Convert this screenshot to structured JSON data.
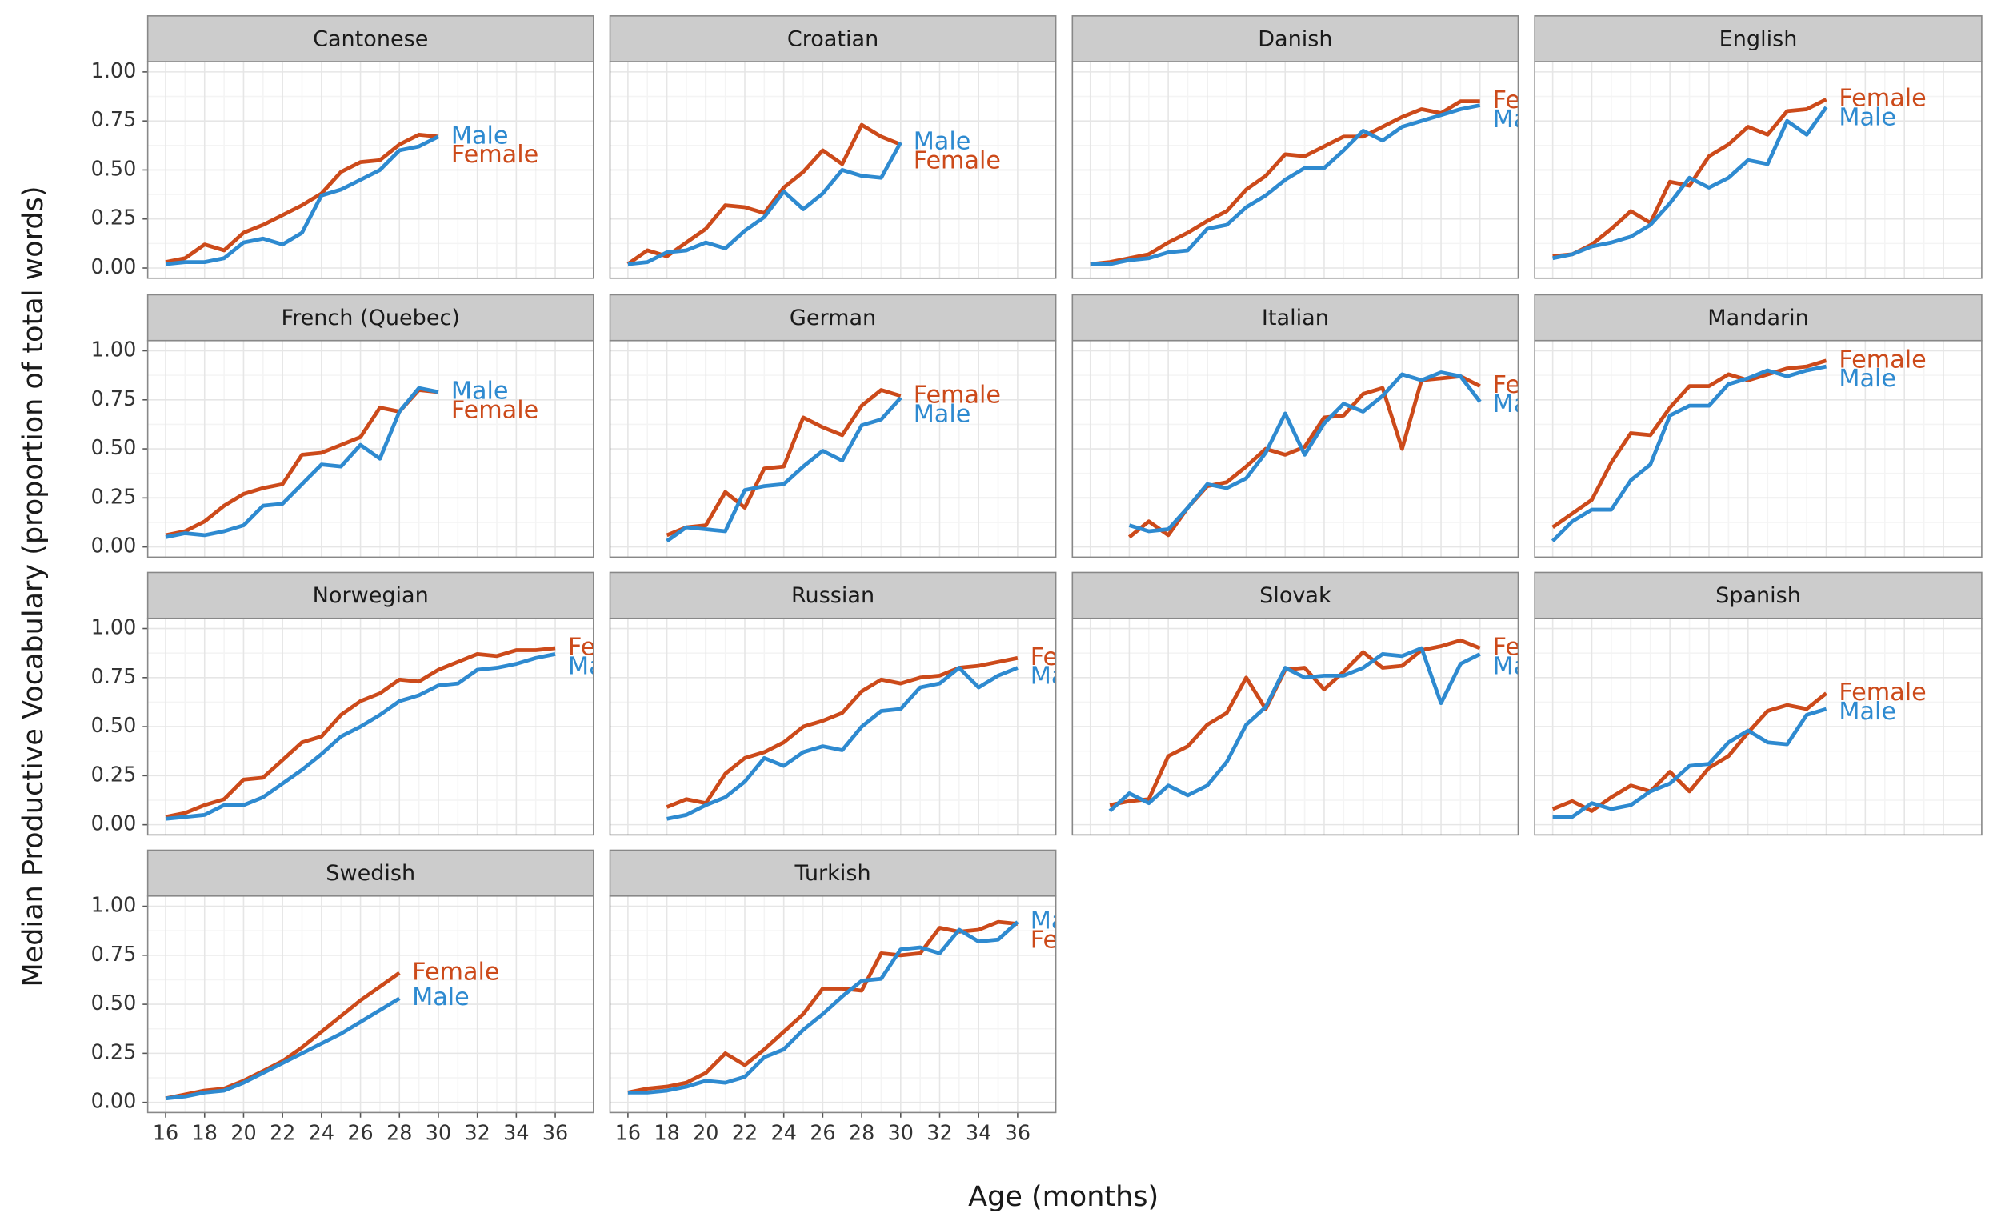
{
  "chart_data": {
    "type": "line",
    "xlabel": "Age (months)",
    "ylabel": "Median Productive Vocabulary (proportion of total words)",
    "xlim": [
      15.08,
      37.96
    ],
    "ylim": [
      -0.052,
      1.052
    ],
    "xticks": [
      16,
      18,
      20,
      22,
      24,
      26,
      28,
      30,
      32,
      34,
      36
    ],
    "yticks": [
      {
        "value": 0,
        "label": "0.00"
      },
      {
        "value": 0.25,
        "label": "0.25"
      },
      {
        "value": 0.5,
        "label": "0.50"
      },
      {
        "value": 0.75,
        "label": "0.75"
      },
      {
        "value": 1,
        "label": "1.00"
      }
    ],
    "grid": true,
    "panels": [
      {
        "title": "Cantonese",
        "x": [
          16,
          17,
          18,
          19,
          20,
          21,
          22,
          23,
          24,
          25,
          26,
          27,
          28,
          29,
          30
        ],
        "series": [
          {
            "name": "Female",
            "color": "#cc4a1a",
            "values": [
              0.03,
              0.05,
              0.12,
              0.09,
              0.18,
              0.22,
              0.27,
              0.32,
              0.38,
              0.49,
              0.54,
              0.55,
              0.63,
              0.68,
              0.67
            ]
          },
          {
            "name": "Male",
            "color": "#2e8ad0",
            "values": [
              0.02,
              0.03,
              0.03,
              0.05,
              0.13,
              0.15,
              0.12,
              0.18,
              0.37,
              0.4,
              0.45,
              0.5,
              0.6,
              0.62,
              0.67
            ]
          }
        ]
      },
      {
        "title": "Croatian",
        "x": [
          16,
          17,
          18,
          19,
          20,
          21,
          22,
          23,
          24,
          25,
          26,
          27,
          28,
          29,
          30
        ],
        "series": [
          {
            "name": "Female",
            "color": "#cc4a1a",
            "values": [
              0.02,
              0.09,
              0.06,
              0.13,
              0.2,
              0.32,
              0.31,
              0.28,
              0.41,
              0.49,
              0.6,
              0.53,
              0.73,
              0.67,
              0.63
            ]
          },
          {
            "name": "Male",
            "color": "#2e8ad0",
            "values": [
              0.02,
              0.03,
              0.08,
              0.09,
              0.13,
              0.1,
              0.19,
              0.26,
              0.39,
              0.3,
              0.38,
              0.5,
              0.47,
              0.46,
              0.64
            ]
          }
        ]
      },
      {
        "title": "Danish",
        "x": [
          16,
          17,
          18,
          19,
          20,
          21,
          22,
          23,
          24,
          25,
          26,
          27,
          28,
          29,
          30,
          31,
          32,
          33,
          34,
          35,
          36
        ],
        "series": [
          {
            "name": "Female",
            "color": "#cc4a1a",
            "values": [
              0.02,
              0.03,
              0.05,
              0.07,
              0.13,
              0.18,
              0.24,
              0.29,
              0.4,
              0.47,
              0.58,
              0.57,
              0.62,
              0.67,
              0.67,
              0.72,
              0.77,
              0.81,
              0.79,
              0.85,
              0.85
            ]
          },
          {
            "name": "Male",
            "color": "#2e8ad0",
            "values": [
              0.02,
              0.02,
              0.04,
              0.05,
              0.08,
              0.09,
              0.2,
              0.22,
              0.31,
              0.37,
              0.45,
              0.51,
              0.51,
              0.6,
              0.7,
              0.65,
              0.72,
              0.75,
              0.78,
              0.81,
              0.83
            ]
          }
        ]
      },
      {
        "title": "English",
        "x": [
          16,
          17,
          18,
          19,
          20,
          21,
          22,
          23,
          24,
          25,
          26,
          27,
          28,
          29,
          30
        ],
        "series": [
          {
            "name": "Female",
            "color": "#cc4a1a",
            "values": [
              0.06,
              0.07,
              0.12,
              0.2,
              0.29,
              0.23,
              0.44,
              0.42,
              0.57,
              0.63,
              0.72,
              0.68,
              0.8,
              0.81,
              0.86
            ]
          },
          {
            "name": "Male",
            "color": "#2e8ad0",
            "values": [
              0.05,
              0.07,
              0.11,
              0.13,
              0.16,
              0.22,
              0.33,
              0.46,
              0.41,
              0.46,
              0.55,
              0.53,
              0.75,
              0.68,
              0.82
            ]
          }
        ]
      },
      {
        "title": "French (Quebec)",
        "x": [
          16,
          17,
          18,
          19,
          20,
          21,
          22,
          23,
          24,
          25,
          26,
          27,
          28,
          29,
          30
        ],
        "series": [
          {
            "name": "Female",
            "color": "#cc4a1a",
            "values": [
              0.06,
              0.08,
              0.13,
              0.21,
              0.27,
              0.3,
              0.32,
              0.47,
              0.48,
              0.52,
              0.56,
              0.71,
              0.69,
              0.8,
              0.79
            ]
          },
          {
            "name": "Male",
            "color": "#2e8ad0",
            "values": [
              0.05,
              0.07,
              0.06,
              0.08,
              0.11,
              0.21,
              0.22,
              0.32,
              0.42,
              0.41,
              0.52,
              0.45,
              0.69,
              0.81,
              0.79
            ]
          }
        ]
      },
      {
        "title": "German",
        "x": [
          18,
          19,
          20,
          21,
          22,
          23,
          24,
          25,
          26,
          27,
          28,
          29,
          30
        ],
        "series": [
          {
            "name": "Female",
            "color": "#cc4a1a",
            "values": [
              0.06,
              0.1,
              0.11,
              0.28,
              0.2,
              0.4,
              0.41,
              0.66,
              0.61,
              0.57,
              0.72,
              0.8,
              0.77
            ]
          },
          {
            "name": "Male",
            "color": "#2e8ad0",
            "values": [
              0.03,
              0.1,
              0.09,
              0.08,
              0.29,
              0.31,
              0.32,
              0.41,
              0.49,
              0.44,
              0.62,
              0.65,
              0.76
            ]
          }
        ]
      },
      {
        "title": "Italian",
        "x": [
          18,
          19,
          20,
          21,
          22,
          23,
          24,
          25,
          26,
          27,
          28,
          29,
          30,
          31,
          32,
          33,
          34,
          35,
          36
        ],
        "series": [
          {
            "name": "Female",
            "color": "#cc4a1a",
            "values": [
              0.05,
              0.13,
              0.06,
              0.2,
              0.31,
              0.33,
              0.41,
              0.5,
              0.47,
              0.51,
              0.66,
              0.67,
              0.78,
              0.81,
              0.5,
              0.85,
              0.86,
              0.87,
              0.82
            ]
          },
          {
            "name": "Male",
            "color": "#2e8ad0",
            "values": [
              0.11,
              0.08,
              0.09,
              0.2,
              0.32,
              0.3,
              0.35,
              0.48,
              0.68,
              0.47,
              0.63,
              0.73,
              0.69,
              0.77,
              0.88,
              0.85,
              0.89,
              0.87,
              0.74
            ]
          }
        ]
      },
      {
        "title": "Mandarin",
        "x": [
          16,
          17,
          18,
          19,
          20,
          21,
          22,
          23,
          24,
          25,
          26,
          27,
          28,
          29,
          30
        ],
        "series": [
          {
            "name": "Female",
            "color": "#cc4a1a",
            "values": [
              0.1,
              0.17,
              0.24,
              0.43,
              0.58,
              0.57,
              0.71,
              0.82,
              0.82,
              0.88,
              0.85,
              0.88,
              0.91,
              0.92,
              0.95
            ]
          },
          {
            "name": "Male",
            "color": "#2e8ad0",
            "values": [
              0.03,
              0.13,
              0.19,
              0.19,
              0.34,
              0.42,
              0.67,
              0.72,
              0.72,
              0.83,
              0.86,
              0.9,
              0.87,
              0.9,
              0.92
            ]
          }
        ]
      },
      {
        "title": "Norwegian",
        "x": [
          16,
          17,
          18,
          19,
          20,
          21,
          22,
          23,
          24,
          25,
          26,
          27,
          28,
          29,
          30,
          31,
          32,
          33,
          34,
          35,
          36
        ],
        "series": [
          {
            "name": "Female",
            "color": "#cc4a1a",
            "values": [
              0.04,
              0.06,
              0.1,
              0.13,
              0.23,
              0.24,
              0.33,
              0.42,
              0.45,
              0.56,
              0.63,
              0.67,
              0.74,
              0.73,
              0.79,
              0.83,
              0.87,
              0.86,
              0.89,
              0.89,
              0.9
            ]
          },
          {
            "name": "Male",
            "color": "#2e8ad0",
            "values": [
              0.03,
              0.04,
              0.05,
              0.1,
              0.1,
              0.14,
              0.21,
              0.28,
              0.36,
              0.45,
              0.5,
              0.56,
              0.63,
              0.66,
              0.71,
              0.72,
              0.79,
              0.8,
              0.82,
              0.85,
              0.87
            ]
          }
        ]
      },
      {
        "title": "Russian",
        "x": [
          18,
          19,
          20,
          21,
          22,
          23,
          24,
          25,
          26,
          27,
          28,
          29,
          30,
          31,
          32,
          33,
          34,
          35,
          36
        ],
        "series": [
          {
            "name": "Female",
            "color": "#cc4a1a",
            "values": [
              0.09,
              0.13,
              0.11,
              0.26,
              0.34,
              0.37,
              0.42,
              0.5,
              0.53,
              0.57,
              0.68,
              0.74,
              0.72,
              0.75,
              0.76,
              0.8,
              0.81,
              0.83,
              0.85
            ]
          },
          {
            "name": "Male",
            "color": "#2e8ad0",
            "values": [
              0.03,
              0.05,
              0.1,
              0.14,
              0.22,
              0.34,
              0.3,
              0.37,
              0.4,
              0.38,
              0.5,
              0.58,
              0.59,
              0.7,
              0.72,
              0.8,
              0.7,
              0.76,
              0.8
            ]
          }
        ]
      },
      {
        "title": "Slovak",
        "x": [
          17,
          18,
          19,
          20,
          21,
          22,
          23,
          24,
          25,
          26,
          27,
          28,
          29,
          30,
          31,
          32,
          33,
          34,
          35,
          36
        ],
        "series": [
          {
            "name": "Female",
            "color": "#cc4a1a",
            "values": [
              0.1,
              0.12,
              0.13,
              0.35,
              0.4,
              0.51,
              0.57,
              0.75,
              0.59,
              0.79,
              0.8,
              0.69,
              0.78,
              0.88,
              0.8,
              0.81,
              0.89,
              0.91,
              0.94,
              0.9
            ]
          },
          {
            "name": "Male",
            "color": "#2e8ad0",
            "values": [
              0.07,
              0.16,
              0.11,
              0.2,
              0.15,
              0.2,
              0.32,
              0.51,
              0.6,
              0.8,
              0.75,
              0.76,
              0.76,
              0.8,
              0.87,
              0.86,
              0.9,
              0.62,
              0.82,
              0.87
            ]
          }
        ]
      },
      {
        "title": "Spanish",
        "x": [
          16,
          17,
          18,
          19,
          20,
          21,
          22,
          23,
          24,
          25,
          26,
          27,
          28,
          29,
          30
        ],
        "series": [
          {
            "name": "Female",
            "color": "#cc4a1a",
            "values": [
              0.08,
              0.12,
              0.07,
              0.14,
              0.2,
              0.17,
              0.27,
              0.17,
              0.29,
              0.35,
              0.47,
              0.58,
              0.61,
              0.59,
              0.67
            ]
          },
          {
            "name": "Male",
            "color": "#2e8ad0",
            "values": [
              0.04,
              0.04,
              0.11,
              0.08,
              0.1,
              0.17,
              0.21,
              0.3,
              0.31,
              0.42,
              0.48,
              0.42,
              0.41,
              0.56,
              0.59
            ]
          }
        ]
      },
      {
        "title": "Swedish",
        "x": [
          16,
          17,
          18,
          19,
          20,
          21,
          22,
          23,
          24,
          25,
          26,
          27,
          28
        ],
        "series": [
          {
            "name": "Female",
            "color": "#cc4a1a",
            "values": [
              0.02,
              0.04,
              0.06,
              0.07,
              0.11,
              0.16,
              0.21,
              0.28,
              0.36,
              0.44,
              0.52,
              0.59,
              0.66
            ]
          },
          {
            "name": "Male",
            "color": "#2e8ad0",
            "values": [
              0.02,
              0.03,
              0.05,
              0.06,
              0.1,
              0.15,
              0.2,
              0.25,
              0.3,
              0.35,
              0.41,
              0.47,
              0.53
            ]
          }
        ]
      },
      {
        "title": "Turkish",
        "x": [
          16,
          17,
          18,
          19,
          20,
          21,
          22,
          23,
          24,
          25,
          26,
          27,
          28,
          29,
          30,
          31,
          32,
          33,
          34,
          35,
          36
        ],
        "series": [
          {
            "name": "Female",
            "color": "#cc4a1a",
            "values": [
              0.05,
              0.07,
              0.08,
              0.1,
              0.15,
              0.25,
              0.19,
              0.27,
              0.36,
              0.45,
              0.58,
              0.58,
              0.57,
              0.76,
              0.75,
              0.76,
              0.89,
              0.87,
              0.88,
              0.92,
              0.91
            ]
          },
          {
            "name": "Male",
            "color": "#2e8ad0",
            "values": [
              0.05,
              0.05,
              0.06,
              0.08,
              0.11,
              0.1,
              0.13,
              0.23,
              0.27,
              0.37,
              0.45,
              0.54,
              0.62,
              0.63,
              0.78,
              0.79,
              0.76,
              0.88,
              0.82,
              0.83,
              0.92
            ]
          }
        ]
      }
    ]
  }
}
